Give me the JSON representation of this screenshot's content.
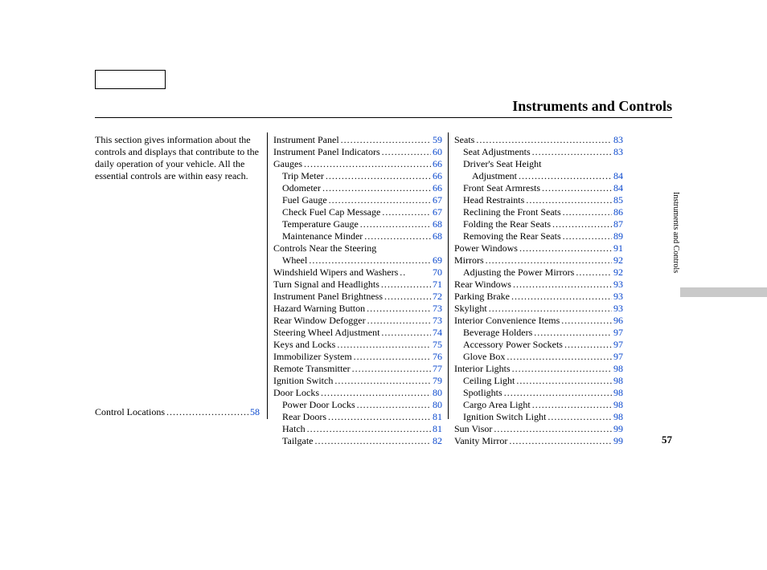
{
  "title": "Instruments and Controls",
  "sideTab": "Instruments and Controls",
  "pageNumber": "57",
  "intro": "This section gives information about the controls and displays that contribute to the daily operation of your vehicle. All the essential controls are within easy reach.",
  "dots": "..................................................................",
  "col1Bottom": {
    "label": "Control Locations",
    "page": "58"
  },
  "col2": [
    {
      "label": "Instrument Panel",
      "page": "59",
      "indent": 0
    },
    {
      "label": "Instrument Panel Indicators",
      "page": "60",
      "indent": 0
    },
    {
      "label": "Gauges",
      "page": "66",
      "indent": 0
    },
    {
      "label": "Trip Meter",
      "page": "66",
      "indent": 1
    },
    {
      "label": "Odometer",
      "page": "66",
      "indent": 1
    },
    {
      "label": "Fuel Gauge",
      "page": "67",
      "indent": 1
    },
    {
      "label": "Check Fuel Cap Message",
      "page": "67",
      "indent": 1
    },
    {
      "label": "Temperature Gauge",
      "page": "68",
      "indent": 1
    },
    {
      "label": "Maintenance Minder",
      "page": "68",
      "indent": 1
    },
    {
      "label": "Controls Near the Steering",
      "page": "",
      "indent": 0,
      "noPage": true
    },
    {
      "label": "Wheel",
      "page": "69",
      "indent": 1,
      "cont": true
    },
    {
      "label": "Windshield Wipers and Washers",
      "page": "70",
      "indent": 0,
      "short": true
    },
    {
      "label": "Turn Signal and Headlights",
      "page": "71",
      "indent": 0
    },
    {
      "label": "Instrument Panel Brightness",
      "page": "72",
      "indent": 0
    },
    {
      "label": "Hazard Warning Button",
      "page": "73",
      "indent": 0
    },
    {
      "label": "Rear Window Defogger",
      "page": "73",
      "indent": 0
    },
    {
      "label": "Steering Wheel Adjustment",
      "page": "74",
      "indent": 0
    },
    {
      "label": "Keys and Locks",
      "page": "75",
      "indent": 0
    },
    {
      "label": "Immobilizer System",
      "page": "76",
      "indent": 0
    },
    {
      "label": "Remote Transmitter",
      "page": "77",
      "indent": 0
    },
    {
      "label": "Ignition Switch",
      "page": "79",
      "indent": 0
    },
    {
      "label": "Door Locks",
      "page": "80",
      "indent": 0
    },
    {
      "label": "Power Door Locks",
      "page": "80",
      "indent": 1
    },
    {
      "label": "Rear Doors",
      "page": "81",
      "indent": 1
    },
    {
      "label": "Hatch",
      "page": "81",
      "indent": 1
    },
    {
      "label": "Tailgate",
      "page": "82",
      "indent": 1
    }
  ],
  "col3": [
    {
      "label": "Seats",
      "page": "83",
      "indent": 0
    },
    {
      "label": "Seat Adjustments",
      "page": "83",
      "indent": 1
    },
    {
      "label": "Driver's Seat Height",
      "page": "",
      "indent": 1,
      "noPage": true
    },
    {
      "label": "Adjustment",
      "page": "84",
      "indent": 2,
      "cont": true
    },
    {
      "label": "Front Seat Armrests",
      "page": "84",
      "indent": 1
    },
    {
      "label": "Head Restraints",
      "page": "85",
      "indent": 1
    },
    {
      "label": "Reclining the Front Seats",
      "page": "86",
      "indent": 1
    },
    {
      "label": "Folding the Rear Seats",
      "page": "87",
      "indent": 1
    },
    {
      "label": "Removing the Rear Seats",
      "page": "89",
      "indent": 1
    },
    {
      "label": "Power Windows",
      "page": "91",
      "indent": 0
    },
    {
      "label": "Mirrors",
      "page": "92",
      "indent": 0
    },
    {
      "label": "Adjusting the Power Mirrors",
      "page": "92",
      "indent": 1
    },
    {
      "label": "Rear Windows",
      "page": "93",
      "indent": 0
    },
    {
      "label": "Parking Brake",
      "page": "93",
      "indent": 0
    },
    {
      "label": "Skylight",
      "page": "93",
      "indent": 0
    },
    {
      "label": "Interior Convenience Items",
      "page": "96",
      "indent": 0
    },
    {
      "label": "Beverage Holders",
      "page": "97",
      "indent": 1
    },
    {
      "label": "Accessory Power Sockets",
      "page": "97",
      "indent": 1
    },
    {
      "label": "Glove Box",
      "page": "97",
      "indent": 1
    },
    {
      "label": "Interior Lights",
      "page": "98",
      "indent": 0
    },
    {
      "label": "Ceiling Light",
      "page": "98",
      "indent": 1
    },
    {
      "label": "Spotlights",
      "page": "98",
      "indent": 1
    },
    {
      "label": "Cargo Area Light",
      "page": "98",
      "indent": 1
    },
    {
      "label": "Ignition Switch Light",
      "page": "98",
      "indent": 1
    },
    {
      "label": "Sun Visor",
      "page": "99",
      "indent": 0
    },
    {
      "label": "Vanity Mirror",
      "page": "99",
      "indent": 0
    }
  ]
}
